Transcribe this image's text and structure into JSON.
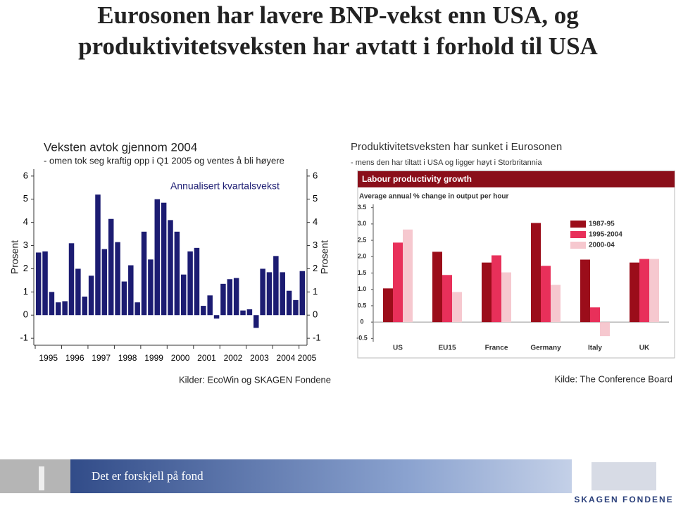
{
  "slide": {
    "title": "Eurosonen har lavere BNP-vekst enn USA, og produktivitetsveksten har avtatt i forhold til USA",
    "footer": "Det er forskjell på fond",
    "logo": "SKAGEN FONDENE"
  },
  "chart_data": [
    {
      "type": "bar",
      "title": "Veksten avtok gjennom 2004",
      "subtitle": "- omen tok seg kraftig opp i Q1 2005 og ventes å bli høyere",
      "annotation": "Annualisert kvartalsvekst",
      "ylabel": "Prosent",
      "y2label": "Prosent",
      "categories": [
        "1995",
        null,
        null,
        null,
        "1996",
        null,
        null,
        null,
        "1997",
        null,
        null,
        null,
        "1998",
        null,
        null,
        null,
        "1999",
        null,
        null,
        null,
        "2000",
        null,
        null,
        null,
        "2001",
        null,
        null,
        null,
        "2002",
        null,
        null,
        null,
        "2003",
        null,
        null,
        null,
        "2004",
        null,
        null,
        null,
        "2005"
      ],
      "values": [
        2.7,
        2.75,
        1.0,
        0.55,
        0.6,
        3.1,
        2.0,
        0.8,
        1.7,
        5.2,
        2.85,
        4.15,
        3.15,
        1.45,
        2.15,
        0.55,
        3.6,
        2.4,
        5.0,
        4.85,
        4.1,
        3.6,
        1.75,
        2.75,
        2.9,
        0.4,
        0.85,
        -0.15,
        1.35,
        1.55,
        1.6,
        0.2,
        0.25,
        -0.55,
        2.0,
        1.85,
        2.55,
        1.85,
        1.05,
        0.65,
        1.9
      ],
      "color": "#1c1c72",
      "ylim": [
        -1.3,
        6.3
      ],
      "yticks": [
        -1,
        0,
        1,
        2,
        3,
        4,
        5,
        6
      ],
      "y2lim": [
        -1.3,
        6.3
      ],
      "y2ticks": [
        -1,
        0,
        1,
        2,
        3,
        4,
        5,
        6
      ],
      "source": "Kilder: EcoWin og SKAGEN Fondene"
    },
    {
      "type": "bar",
      "heading": "Produktivitetsveksten har sunket i Eurosonen",
      "subheading": "- mens den har tiltatt i USA og ligger høyt i Storbritannia",
      "title": "Labour productivity growth",
      "subtitle": "Average annual % change in output per hour",
      "categories": [
        "US",
        "EU15",
        "France",
        "Germany",
        "Italy",
        "UK"
      ],
      "series": [
        {
          "name": "1987-95",
          "color": "#9b0d1a",
          "values": [
            1.03,
            2.15,
            1.82,
            3.03,
            1.91,
            1.82
          ]
        },
        {
          "name": "1995-2004",
          "color": "#e8305a",
          "values": [
            2.43,
            1.44,
            2.04,
            1.72,
            0.45,
            1.93
          ]
        },
        {
          "name": "2000-04",
          "color": "#f6c8cf",
          "values": [
            2.83,
            0.92,
            1.52,
            1.14,
            -0.43,
            1.93
          ]
        }
      ],
      "ylim": [
        -0.6,
        3.6
      ],
      "yticks": [
        -0.5,
        0,
        0.5,
        {
          "value": 1,
          "label": "1.0"
        },
        1.5,
        {
          "value": 2,
          "label": "2.0"
        },
        2.5,
        {
          "value": 3,
          "label": "3.0"
        },
        3.5
      ],
      "legend": "upper right",
      "source": "Kilde: The Conference Board"
    }
  ]
}
